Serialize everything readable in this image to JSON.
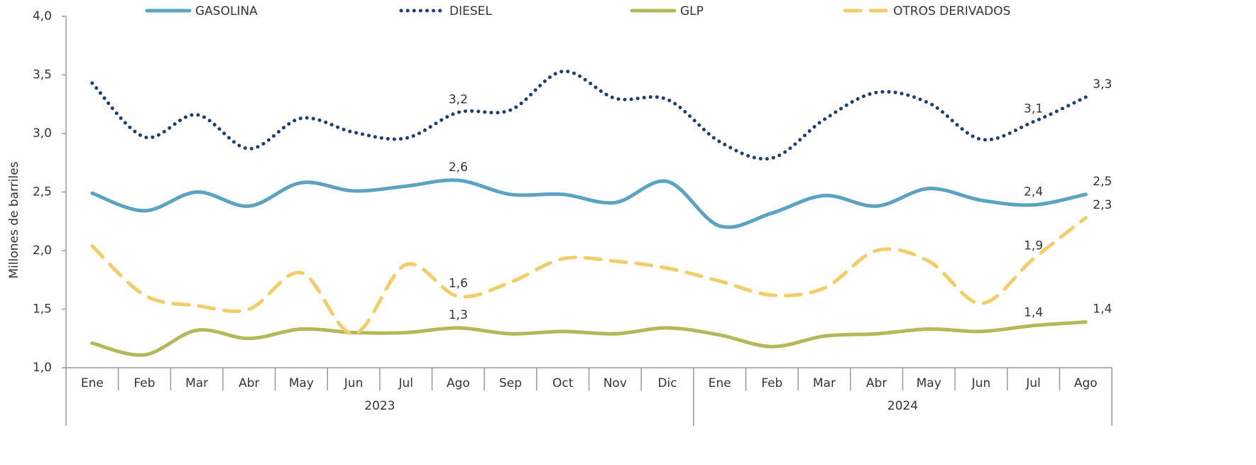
{
  "chart_data": {
    "type": "line",
    "y_label": "Millones de barriles",
    "categories": [
      "Ene",
      "Feb",
      "Mar",
      "Abr",
      "May",
      "Jun",
      "Jul",
      "Ago",
      "Sep",
      "Oct",
      "Nov",
      "Dic",
      "Ene",
      "Feb",
      "Mar",
      "Abr",
      "May",
      "Jun",
      "Jul",
      "Ago"
    ],
    "x_groups": [
      {
        "label": "2023",
        "start": 0,
        "end": 11
      },
      {
        "label": "2024",
        "start": 12,
        "end": 19
      }
    ],
    "ylim": [
      1.0,
      4.0
    ],
    "yticks": [
      {
        "value": 1.0,
        "label": "1,0"
      },
      {
        "value": 1.5,
        "label": "1,5"
      },
      {
        "value": 2.0,
        "label": "2,0"
      },
      {
        "value": 2.5,
        "label": "2,5"
      },
      {
        "value": 3.0,
        "label": "3,0"
      },
      {
        "value": 3.5,
        "label": "3,5"
      },
      {
        "value": 4.0,
        "label": "4,0"
      }
    ],
    "legend": "top",
    "series": [
      {
        "name": "GASOLINA",
        "color": "#5ba3c0",
        "style": "solid",
        "values": [
          2.49,
          2.34,
          2.5,
          2.38,
          2.58,
          2.51,
          2.55,
          2.6,
          2.48,
          2.48,
          2.41,
          2.59,
          2.21,
          2.32,
          2.47,
          2.38,
          2.53,
          2.43,
          2.39,
          2.48
        ],
        "value_labels": [
          null,
          null,
          null,
          null,
          null,
          null,
          null,
          "2,6",
          null,
          null,
          null,
          null,
          null,
          null,
          null,
          null,
          null,
          null,
          "2,4",
          "2,5"
        ]
      },
      {
        "name": "DIESEL",
        "color": "#1f3f6e",
        "style": "dotted",
        "values": [
          3.43,
          2.97,
          3.16,
          2.87,
          3.13,
          3.01,
          2.96,
          3.18,
          3.2,
          3.53,
          3.3,
          3.29,
          2.93,
          2.79,
          3.12,
          3.35,
          3.26,
          2.95,
          3.1,
          3.31
        ],
        "value_labels": [
          null,
          null,
          null,
          null,
          null,
          null,
          null,
          "3,2",
          null,
          null,
          null,
          null,
          null,
          null,
          null,
          null,
          null,
          null,
          "3,1",
          "3,3"
        ]
      },
      {
        "name": "GLP",
        "color": "#b5b85a",
        "style": "solid",
        "values": [
          1.21,
          1.11,
          1.32,
          1.25,
          1.33,
          1.3,
          1.3,
          1.34,
          1.29,
          1.31,
          1.29,
          1.34,
          1.28,
          1.18,
          1.27,
          1.29,
          1.33,
          1.31,
          1.36,
          1.39
        ],
        "value_labels": [
          null,
          null,
          null,
          null,
          null,
          null,
          null,
          "1,3",
          null,
          null,
          null,
          null,
          null,
          null,
          null,
          null,
          null,
          null,
          "1,4",
          "1,4"
        ]
      },
      {
        "name": "OTROS DERIVADOS",
        "color": "#f2cd6a",
        "style": "dashed",
        "values": [
          2.04,
          1.62,
          1.53,
          1.5,
          1.81,
          1.29,
          1.88,
          1.61,
          1.73,
          1.93,
          1.91,
          1.85,
          1.74,
          1.62,
          1.68,
          2.0,
          1.91,
          1.55,
          1.93,
          2.28
        ],
        "value_labels": [
          null,
          null,
          null,
          null,
          null,
          null,
          null,
          "1,6",
          null,
          null,
          null,
          null,
          null,
          null,
          null,
          null,
          null,
          null,
          "1,9",
          "2,3"
        ]
      }
    ]
  }
}
